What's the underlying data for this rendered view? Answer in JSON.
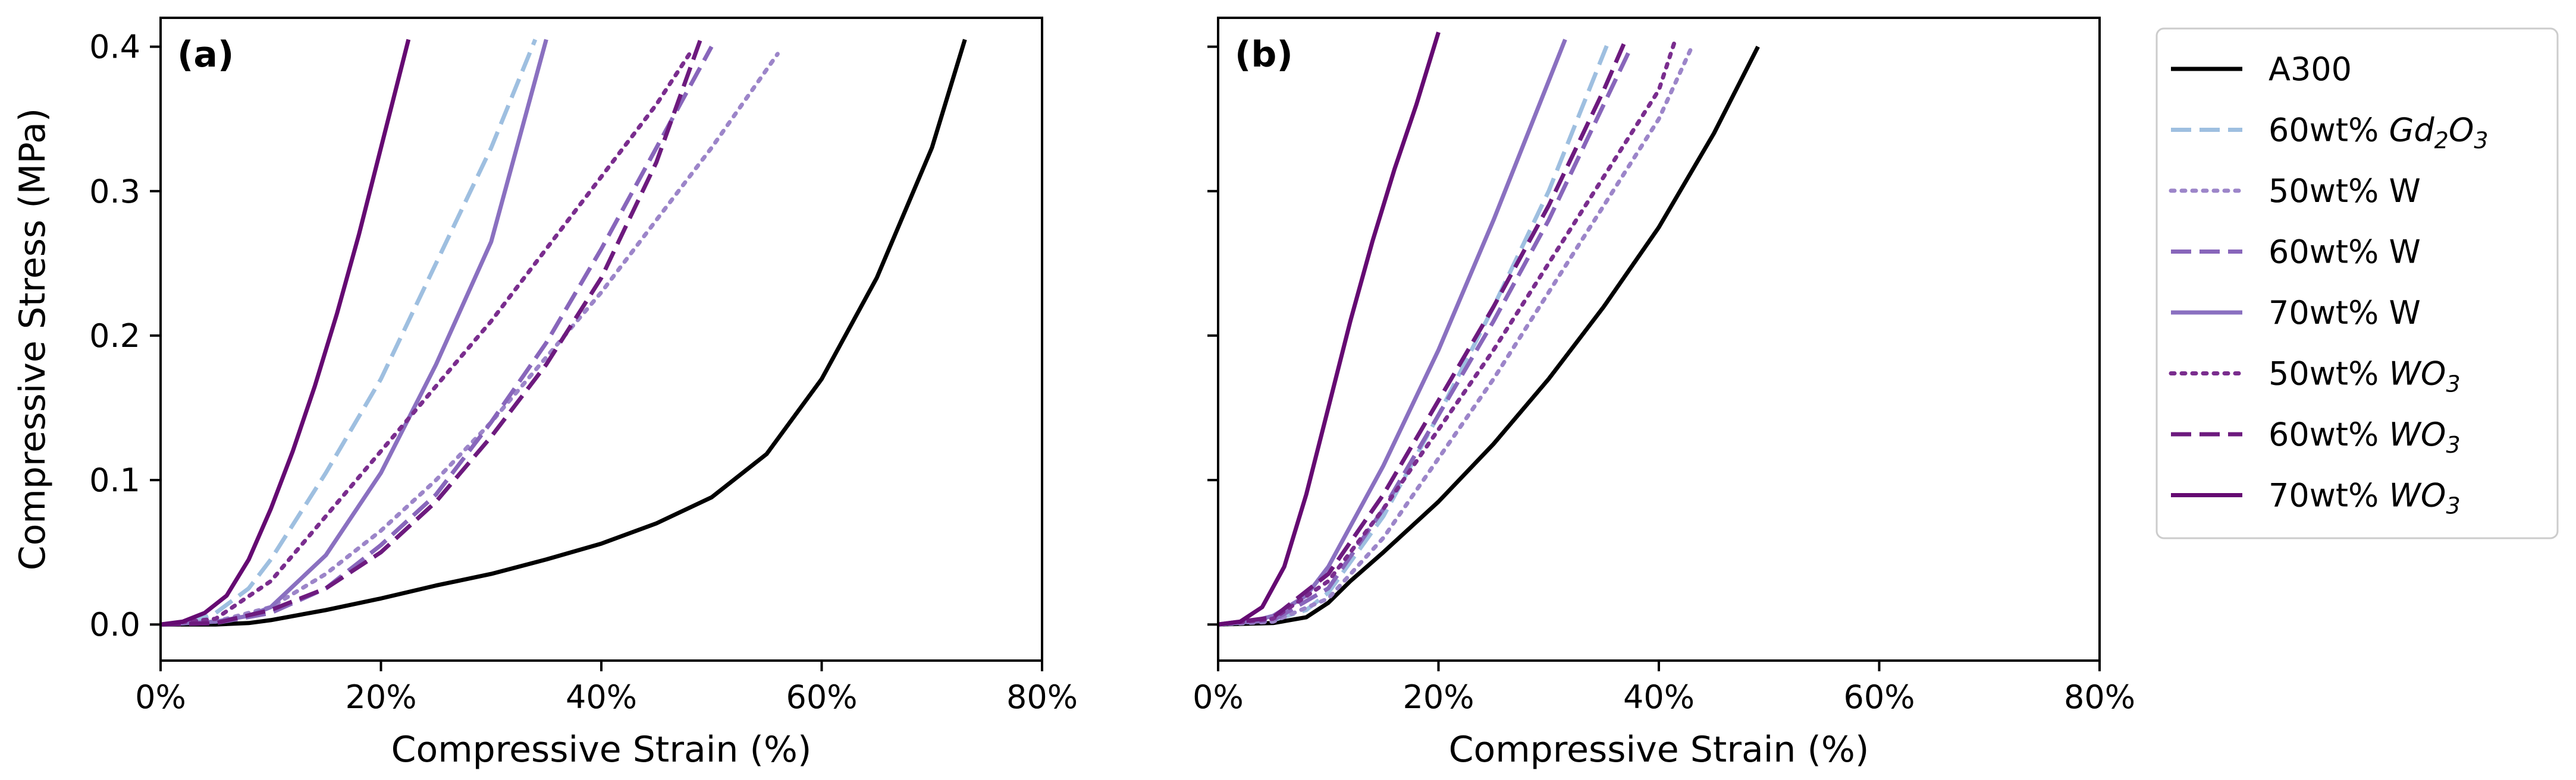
{
  "figure": {
    "legend_position": "right, outside plots"
  },
  "chart_data": [
    {
      "panel": "(a)",
      "type": "line",
      "xlabel": "Compressive Strain (%)",
      "ylabel": "Compressive Stress (MPa)",
      "xlim": [
        0,
        80
      ],
      "ylim": [
        -0.025,
        0.42
      ],
      "xticks": [
        "0%",
        "20%",
        "40%",
        "60%",
        "80%"
      ],
      "yticks": [
        "0.0",
        "0.1",
        "0.2",
        "0.3",
        "0.4"
      ],
      "series": [
        {
          "name": "A300",
          "x": [
            0,
            5,
            8,
            10,
            15,
            20,
            25,
            30,
            35,
            40,
            45,
            50,
            55,
            60,
            65,
            70,
            73
          ],
          "y": [
            0,
            0,
            0.001,
            0.003,
            0.01,
            0.018,
            0.027,
            0.035,
            0.045,
            0.056,
            0.07,
            0.088,
            0.118,
            0.17,
            0.24,
            0.33,
            0.405
          ]
        },
        {
          "name": "60wt% Gd2O3",
          "x": [
            0,
            3,
            5,
            8,
            10,
            15,
            20,
            25,
            30,
            34
          ],
          "y": [
            0,
            0.002,
            0.008,
            0.025,
            0.045,
            0.105,
            0.17,
            0.25,
            0.33,
            0.405
          ]
        },
        {
          "name": "50wt% W",
          "x": [
            0,
            5,
            10,
            15,
            20,
            25,
            30,
            35,
            40,
            45,
            50,
            56
          ],
          "y": [
            0,
            0.002,
            0.012,
            0.035,
            0.065,
            0.1,
            0.14,
            0.185,
            0.23,
            0.28,
            0.33,
            0.395
          ]
        },
        {
          "name": "60wt% W",
          "x": [
            0,
            5,
            10,
            15,
            20,
            25,
            30,
            35,
            40,
            45,
            50
          ],
          "y": [
            0,
            0.001,
            0.008,
            0.025,
            0.055,
            0.09,
            0.14,
            0.195,
            0.26,
            0.33,
            0.4
          ]
        },
        {
          "name": "70wt% W",
          "x": [
            0,
            5,
            8,
            10,
            15,
            20,
            25,
            30,
            35
          ],
          "y": [
            0,
            0.002,
            0.006,
            0.012,
            0.048,
            0.105,
            0.18,
            0.265,
            0.405
          ]
        },
        {
          "name": "50wt% WO3",
          "x": [
            0,
            5,
            10,
            15,
            20,
            25,
            30,
            35,
            40,
            45,
            48
          ],
          "y": [
            0,
            0.004,
            0.03,
            0.075,
            0.12,
            0.165,
            0.21,
            0.26,
            0.31,
            0.36,
            0.395
          ]
        },
        {
          "name": "60wt% WO3",
          "x": [
            0,
            5,
            10,
            15,
            20,
            25,
            30,
            35,
            40,
            45,
            49
          ],
          "y": [
            0,
            0.001,
            0.01,
            0.025,
            0.05,
            0.085,
            0.13,
            0.18,
            0.24,
            0.32,
            0.405
          ]
        },
        {
          "name": "70wt% WO3",
          "x": [
            0,
            2,
            4,
            6,
            8,
            10,
            12,
            14,
            16,
            18,
            20,
            22.5
          ],
          "y": [
            0,
            0.002,
            0.008,
            0.02,
            0.045,
            0.08,
            0.12,
            0.165,
            0.215,
            0.27,
            0.33,
            0.405
          ]
        }
      ]
    },
    {
      "panel": "(b)",
      "type": "line",
      "xlabel": "Compressive Strain (%)",
      "ylabel": "",
      "xlim": [
        0,
        80
      ],
      "ylim": [
        -0.025,
        0.42
      ],
      "xticks": [
        "0%",
        "20%",
        "40%",
        "60%",
        "80%"
      ],
      "yticks": [],
      "series": [
        {
          "name": "A300",
          "x": [
            0,
            5,
            8,
            10,
            12,
            15,
            20,
            25,
            30,
            35,
            40,
            45,
            49
          ],
          "y": [
            0,
            0.001,
            0.005,
            0.015,
            0.03,
            0.05,
            0.085,
            0.125,
            0.17,
            0.22,
            0.275,
            0.34,
            0.4
          ]
        },
        {
          "name": "60wt% Gd2O3",
          "x": [
            0,
            5,
            8,
            10,
            15,
            20,
            25,
            30,
            35.5
          ],
          "y": [
            0,
            0.003,
            0.01,
            0.022,
            0.075,
            0.145,
            0.22,
            0.3,
            0.405
          ]
        },
        {
          "name": "50wt% W",
          "x": [
            0,
            5,
            10,
            15,
            20,
            25,
            30,
            35,
            40,
            43
          ],
          "y": [
            0,
            0.002,
            0.018,
            0.06,
            0.115,
            0.17,
            0.23,
            0.29,
            0.35,
            0.4
          ]
        },
        {
          "name": "60wt% W",
          "x": [
            0,
            5,
            10,
            15,
            20,
            25,
            30,
            35,
            37.5
          ],
          "y": [
            0,
            0.003,
            0.025,
            0.08,
            0.145,
            0.21,
            0.28,
            0.36,
            0.4
          ]
        },
        {
          "name": "70wt% W",
          "x": [
            0,
            3,
            5,
            8,
            10,
            15,
            20,
            25,
            31.5
          ],
          "y": [
            0,
            0.002,
            0.006,
            0.02,
            0.04,
            0.11,
            0.19,
            0.28,
            0.405
          ]
        },
        {
          "name": "50wt% WO3",
          "x": [
            0,
            5,
            10,
            15,
            20,
            25,
            30,
            35,
            40,
            41.5
          ],
          "y": [
            0,
            0.004,
            0.03,
            0.08,
            0.135,
            0.19,
            0.25,
            0.31,
            0.37,
            0.405
          ]
        },
        {
          "name": "60wt% WO3",
          "x": [
            0,
            5,
            10,
            15,
            20,
            25,
            30,
            35,
            37
          ],
          "y": [
            0,
            0.005,
            0.035,
            0.09,
            0.155,
            0.22,
            0.29,
            0.37,
            0.405
          ]
        },
        {
          "name": "70wt% WO3",
          "x": [
            0,
            2,
            4,
            6,
            8,
            10,
            12,
            14,
            16,
            18,
            20
          ],
          "y": [
            0,
            0.002,
            0.012,
            0.04,
            0.09,
            0.15,
            0.21,
            0.265,
            0.315,
            0.36,
            0.41
          ]
        }
      ]
    }
  ],
  "legend": [
    {
      "key": "a300",
      "label": "A300",
      "color": "#000000",
      "dash": "solid"
    },
    {
      "key": "gd2o3-60",
      "label": "60wt% Gd2O3",
      "label_main": "60wt% ",
      "label_formula": "Gd",
      "sub1": "2",
      "mid": "O",
      "sub2": "3",
      "color": "#9ebfe0",
      "dash": "dashed"
    },
    {
      "key": "w-50",
      "label": "50wt% W",
      "color": "#9c85c9",
      "dash": "dotted"
    },
    {
      "key": "w-60",
      "label": "60wt% W",
      "color": "#8866bb",
      "dash": "dashed"
    },
    {
      "key": "w-70",
      "label": "70wt% W",
      "color": "#8a70c0",
      "dash": "solid"
    },
    {
      "key": "wo3-50",
      "label": "50wt% WO3",
      "label_main": "50wt% ",
      "label_formula": "WO",
      "sub2": "3",
      "color": "#7a2d8e",
      "dash": "dotted"
    },
    {
      "key": "wo3-60",
      "label": "60wt% WO3",
      "label_main": "60wt% ",
      "label_formula": "WO",
      "sub2": "3",
      "color": "#6d1a7e",
      "dash": "dashed"
    },
    {
      "key": "wo3-70",
      "label": "70wt% WO3",
      "label_main": "70wt% ",
      "label_formula": "WO",
      "sub2": "3",
      "color": "#650a72",
      "dash": "solid"
    }
  ]
}
